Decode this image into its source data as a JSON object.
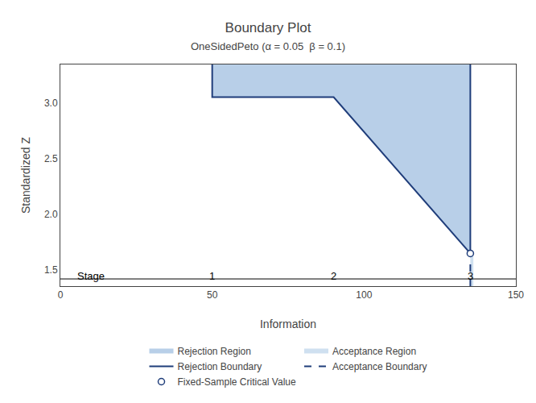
{
  "chart_data": {
    "type": "line",
    "title": "Boundary Plot",
    "subtitle": "OneSidedPeto (α = 0.05  β = 0.1)",
    "xlabel": "Information",
    "ylabel": "Standardized Z",
    "xlim": [
      0,
      150
    ],
    "ylim": [
      1.35,
      3.35
    ],
    "xticks": [
      0,
      50,
      100,
      150
    ],
    "yticks": [
      1.5,
      {
        "value": 2.0,
        "label": "2.0"
      },
      2.5,
      {
        "value": 3.0,
        "label": "3.0"
      }
    ],
    "grid": false,
    "legend": "lower center",
    "series": [
      {
        "name": "Rejection Region",
        "type": "area",
        "color": "#b8cfe8",
        "x": [
          50,
          90,
          135,
          135,
          50
        ],
        "values": [
          3.055,
          3.055,
          1.645,
          3.35,
          3.35
        ]
      },
      {
        "name": "Acceptance Region",
        "type": "area",
        "color": "#cfe0f0",
        "x": [
          135,
          136,
          136,
          135
        ],
        "values": [
          1.35,
          1.35,
          1.645,
          1.645
        ]
      },
      {
        "name": "Rejection Boundary",
        "type": "line",
        "color": "#1f3d7a",
        "line_style": "solid",
        "x": [
          50,
          50,
          90,
          135,
          135
        ],
        "values": [
          3.35,
          3.055,
          3.055,
          1.645,
          3.35
        ]
      },
      {
        "name": "Acceptance Boundary",
        "type": "line",
        "color": "#1f3d7a",
        "line_style": "dashed",
        "x": [
          135,
          135
        ],
        "values": [
          1.35,
          1.645
        ]
      },
      {
        "name": "Fixed-Sample Critical Value",
        "type": "scatter",
        "color": "#1f3d7a",
        "marker": "o",
        "x": [
          135
        ],
        "values": [
          1.645
        ]
      }
    ],
    "annotations": [
      {
        "text": "Stage",
        "x": 5
      },
      {
        "text": "1",
        "x": 50
      },
      {
        "text": "2",
        "x": 90
      },
      {
        "text": "3",
        "x": 135
      }
    ]
  }
}
